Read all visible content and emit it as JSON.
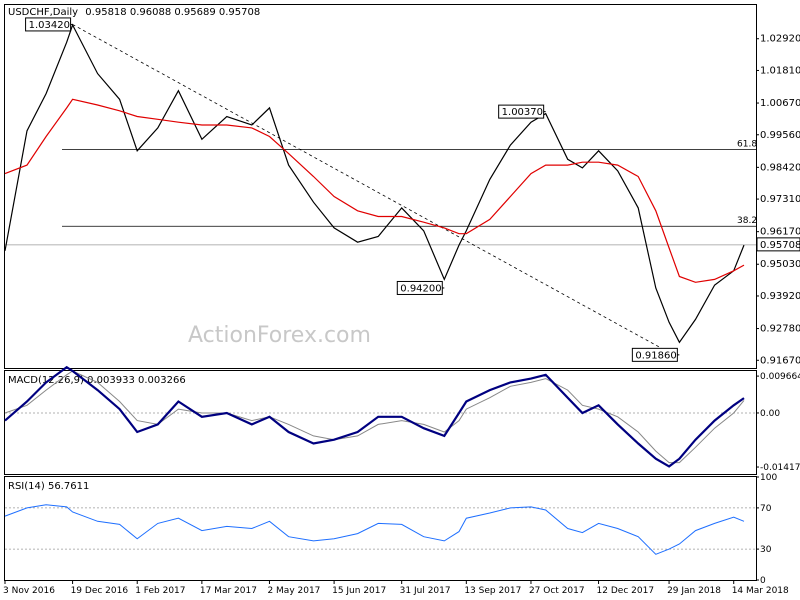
{
  "header": {
    "symbol_line": "USDCHF,Daily",
    "ohlc_line": "0.95818 0.96088 0.95689 0.95708"
  },
  "watermark": "ActionForex.com",
  "price_pane": {
    "y_ticks": [
      "1.02920",
      "1.01810",
      "1.00670",
      "0.99560",
      "0.98420",
      "0.97310",
      "0.96170",
      "0.95030",
      "0.93920",
      "0.92780",
      "0.91670"
    ],
    "current_price": "0.95708",
    "fib_labels": [
      "61.8",
      "38.2"
    ],
    "annotations": [
      "1.03420",
      "1.00370",
      "0.94200",
      "0.91860"
    ]
  },
  "macd_pane": {
    "title": "MACD(12,26,9) 0.003933 0.003266",
    "y_ticks": [
      "0.009664",
      "0.00",
      "-0.014171"
    ]
  },
  "rsi_pane": {
    "title": "RSI(14) 56.7611",
    "y_ticks": [
      "100",
      "70",
      "30",
      "0"
    ]
  },
  "x_ticks": [
    "3 Nov 2016",
    "19 Dec 2016",
    "1 Feb 2017",
    "17 Mar 2017",
    "2 May 2017",
    "15 Jun 2017",
    "31 Jul 2017",
    "13 Sep 2017",
    "27 Oct 2017",
    "12 Dec 2017",
    "29 Jan 2018",
    "14 Mar 2018"
  ],
  "colors": {
    "price": "#000000",
    "ma": "#e00000",
    "macd_line": "#000080",
    "signal_line": "#888888",
    "rsi_line": "#1e6fff",
    "level_dotted": "#999999"
  },
  "chart_data": [
    {
      "type": "line",
      "name": "USDCHF Daily price",
      "x": [
        "2016-11-03",
        "2016-11-18",
        "2016-12-01",
        "2016-12-15",
        "2016-12-19",
        "2017-01-05",
        "2017-01-20",
        "2017-02-01",
        "2017-02-15",
        "2017-03-01",
        "2017-03-17",
        "2017-04-03",
        "2017-04-20",
        "2017-05-02",
        "2017-05-15",
        "2017-06-01",
        "2017-06-15",
        "2017-07-01",
        "2017-07-15",
        "2017-07-31",
        "2017-08-15",
        "2017-08-29",
        "2017-09-08",
        "2017-09-13",
        "2017-09-29",
        "2017-10-13",
        "2017-10-27",
        "2017-11-06",
        "2017-11-21",
        "2017-12-01",
        "2017-12-12",
        "2017-12-25",
        "2018-01-08",
        "2018-01-20",
        "2018-01-29",
        "2018-02-05",
        "2018-02-16",
        "2018-03-01",
        "2018-03-14",
        "2018-03-21"
      ],
      "series": [
        {
          "name": "Price",
          "values": [
            0.955,
            0.997,
            1.01,
            1.028,
            1.034,
            1.017,
            1.008,
            0.99,
            0.998,
            1.011,
            0.994,
            1.002,
            0.999,
            1.005,
            0.985,
            0.972,
            0.963,
            0.958,
            0.96,
            0.97,
            0.962,
            0.945,
            0.957,
            0.962,
            0.98,
            0.992,
            1.0,
            1.003,
            0.987,
            0.984,
            0.99,
            0.983,
            0.97,
            0.942,
            0.93,
            0.923,
            0.931,
            0.943,
            0.948,
            0.957
          ]
        },
        {
          "name": "MA",
          "values": [
            0.982,
            0.985,
            0.995,
            1.005,
            1.008,
            1.006,
            1.004,
            1.002,
            1.001,
            1.0,
            0.999,
            0.999,
            0.998,
            0.995,
            0.989,
            0.981,
            0.974,
            0.969,
            0.967,
            0.967,
            0.965,
            0.963,
            0.961,
            0.961,
            0.966,
            0.974,
            0.982,
            0.985,
            0.985,
            0.986,
            0.986,
            0.985,
            0.981,
            0.969,
            0.956,
            0.946,
            0.944,
            0.945,
            0.948,
            0.95
          ]
        }
      ],
      "horizontal_levels": [
        {
          "label": "61.8",
          "value": 0.9905
        },
        {
          "label": "38.2",
          "value": 0.9636
        }
      ],
      "trendline": {
        "from": [
          "2016-12-19",
          1.0342
        ],
        "to": [
          "2018-02-01",
          0.9186
        ]
      },
      "ylim": [
        0.914,
        1.041
      ]
    },
    {
      "type": "line",
      "title": "MACD(12,26,9) 0.003933 0.003266",
      "series": [
        {
          "name": "MACD",
          "values": [
            -0.002,
            0.003,
            0.008,
            0.012,
            0.011,
            0.006,
            0.001,
            -0.005,
            -0.003,
            0.003,
            -0.001,
            0.0,
            -0.003,
            -0.001,
            -0.005,
            -0.008,
            -0.007,
            -0.005,
            -0.001,
            -0.001,
            -0.004,
            -0.006,
            0.0,
            0.003,
            0.006,
            0.008,
            0.009,
            0.01,
            0.004,
            0.0,
            0.002,
            -0.003,
            -0.008,
            -0.012,
            -0.014,
            -0.012,
            -0.007,
            -0.002,
            0.002,
            0.0039
          ]
        },
        {
          "name": "Signal",
          "values": [
            0.0,
            0.002,
            0.006,
            0.01,
            0.011,
            0.008,
            0.003,
            -0.002,
            -0.003,
            0.001,
            0.0,
            0.0,
            -0.002,
            -0.001,
            -0.003,
            -0.006,
            -0.007,
            -0.006,
            -0.003,
            -0.002,
            -0.003,
            -0.005,
            -0.002,
            0.001,
            0.004,
            0.007,
            0.008,
            0.009,
            0.006,
            0.002,
            0.001,
            -0.001,
            -0.005,
            -0.01,
            -0.013,
            -0.013,
            -0.009,
            -0.004,
            0.0,
            0.0033
          ]
        }
      ],
      "ylim": [
        -0.016,
        0.011
      ]
    },
    {
      "type": "line",
      "title": "RSI(14) 56.7611",
      "series": [
        {
          "name": "RSI",
          "values": [
            62,
            70,
            73,
            71,
            66,
            57,
            54,
            40,
            55,
            60,
            48,
            52,
            50,
            57,
            42,
            38,
            40,
            45,
            55,
            54,
            42,
            38,
            47,
            60,
            65,
            70,
            71,
            68,
            50,
            46,
            55,
            50,
            42,
            25,
            30,
            35,
            48,
            55,
            61,
            57
          ]
        }
      ],
      "ylim": [
        0,
        100
      ],
      "levels": [
        70,
        30
      ]
    }
  ]
}
